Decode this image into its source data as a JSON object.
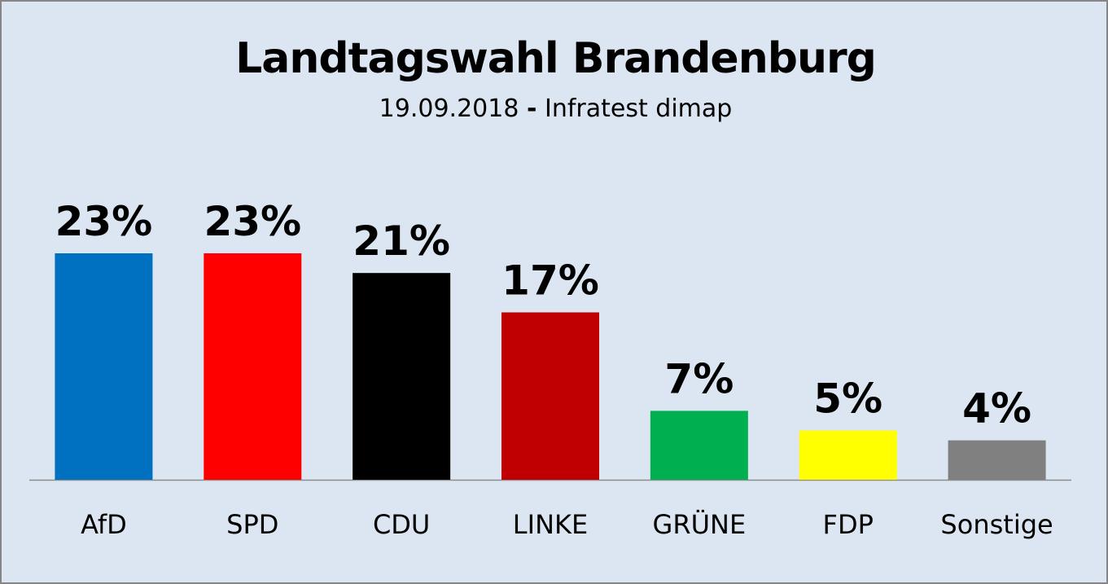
{
  "chart_data": {
    "type": "bar",
    "title": "Landtagswahl Brandenburg",
    "subtitle": {
      "date": "19.09.2018",
      "separator": "-",
      "institute": "Infratest dimap"
    },
    "categories": [
      "AfD",
      "SPD",
      "CDU",
      "LINKE",
      "GRÜNE",
      "FDP",
      "Sonstige"
    ],
    "values": [
      23,
      23,
      21,
      17,
      7,
      5,
      4
    ],
    "data_labels": [
      "23%",
      "23%",
      "21%",
      "17%",
      "7%",
      "5%",
      "4%"
    ],
    "colors": [
      "#0070c0",
      "#ff0000",
      "#000000",
      "#c00000",
      "#00b050",
      "#ffff00",
      "#808080"
    ],
    "xlabel": "",
    "ylabel": "",
    "ylim": [
      0,
      23
    ],
    "unit": "%",
    "grid": false,
    "legend": "none",
    "background": "#dce6f2"
  }
}
